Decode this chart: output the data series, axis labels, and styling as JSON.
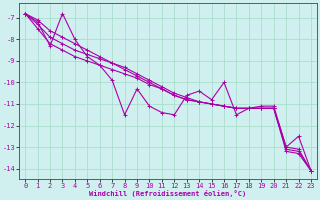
{
  "xlabel": "Windchill (Refroidissement éolien,°C)",
  "background_color": "#cff0ee",
  "grid_color": "#aaddcc",
  "line_color": "#aa00aa",
  "xlim": [
    -0.5,
    23.5
  ],
  "ylim": [
    -14.5,
    -6.3
  ],
  "yticks": [
    -14,
    -13,
    -12,
    -11,
    -10,
    -9,
    -8,
    -7
  ],
  "xticks": [
    0,
    1,
    2,
    3,
    4,
    5,
    6,
    7,
    8,
    9,
    10,
    11,
    12,
    13,
    14,
    15,
    16,
    17,
    18,
    19,
    20,
    21,
    22,
    23
  ],
  "series_jagged": [
    -6.8,
    -7.2,
    -8.3,
    -6.8,
    -8.0,
    -8.8,
    -9.2,
    -9.9,
    -11.5,
    -10.3,
    -11.1,
    -11.4,
    -11.5,
    -10.6,
    -10.4,
    -10.8,
    -10.0,
    -11.5,
    -11.2,
    -11.1,
    -11.1,
    -13.0,
    -12.5,
    -14.1
  ],
  "series_smooth1": [
    -6.8,
    -7.1,
    -7.6,
    -7.9,
    -8.2,
    -8.5,
    -8.8,
    -9.1,
    -9.4,
    -9.7,
    -10.0,
    -10.3,
    -10.6,
    -10.8,
    -10.9,
    -11.0,
    -11.1,
    -11.2,
    -11.2,
    -11.2,
    -11.2,
    -13.2,
    -13.3,
    -14.1
  ],
  "series_smooth2": [
    -6.8,
    -7.3,
    -7.9,
    -8.2,
    -8.5,
    -8.7,
    -8.9,
    -9.1,
    -9.3,
    -9.6,
    -9.9,
    -10.2,
    -10.5,
    -10.7,
    -10.9,
    -11.0,
    -11.1,
    -11.2,
    -11.2,
    -11.2,
    -11.2,
    -13.1,
    -13.2,
    -14.1
  ],
  "series_smooth3": [
    -6.8,
    -7.5,
    -8.2,
    -8.5,
    -8.8,
    -9.0,
    -9.2,
    -9.4,
    -9.6,
    -9.8,
    -10.1,
    -10.3,
    -10.6,
    -10.8,
    -10.9,
    -11.0,
    -11.1,
    -11.2,
    -11.2,
    -11.2,
    -11.2,
    -13.0,
    -13.1,
    -14.1
  ]
}
